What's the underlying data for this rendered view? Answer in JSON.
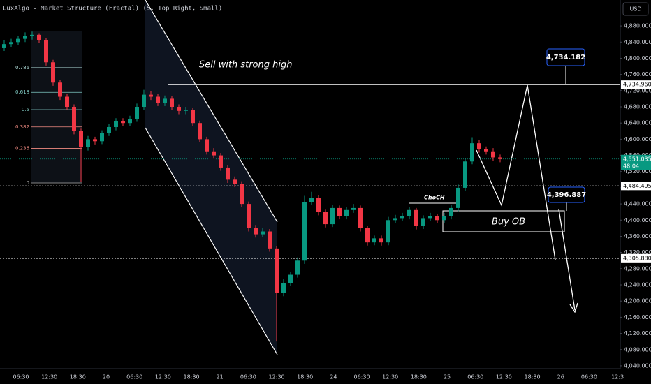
{
  "chart_data": {
    "type": "candlestick",
    "indicator": "LuxAlgo - Market Structure (Fractal) (5, Top Right, Small)",
    "currency": "USD",
    "up_color": "#089981",
    "down_color": "#f23645",
    "ylim": [
      4033,
      4944
    ],
    "yticks": [
      {
        "value": 4040,
        "label": "4,040.000"
      },
      {
        "value": 4080,
        "label": "4,080.000"
      },
      {
        "value": 4120,
        "label": "4,120.000"
      },
      {
        "value": 4160,
        "label": "4,160.000"
      },
      {
        "value": 4200,
        "label": "4,200.000"
      },
      {
        "value": 4240,
        "label": "4,240.000"
      },
      {
        "value": 4280,
        "label": "4,280.000"
      },
      {
        "value": 4320,
        "label": "4,320.000"
      },
      {
        "value": 4360,
        "label": "4,360.000"
      },
      {
        "value": 4400,
        "label": "4,400.000"
      },
      {
        "value": 4440,
        "label": "4,440.000"
      },
      {
        "value": 4480,
        "label": "4,480.000"
      },
      {
        "value": 4520,
        "label": "4,520.000"
      },
      {
        "value": 4560,
        "label": "4,560.000"
      },
      {
        "value": 4600,
        "label": "4,600.000"
      },
      {
        "value": 4640,
        "label": "4,640.000"
      },
      {
        "value": 4680,
        "label": "4,680.000"
      },
      {
        "value": 4720,
        "label": "4,720.000"
      },
      {
        "value": 4760,
        "label": "4,760.000"
      },
      {
        "value": 4800,
        "label": "4,800.000"
      },
      {
        "value": 4840,
        "label": "4,840.000"
      },
      {
        "value": 4880,
        "label": "4,880.000"
      }
    ],
    "xtick_labels": [
      "06:30",
      "12:30",
      "18:30",
      "20",
      "06:30",
      "12:30",
      "18:30",
      "21",
      "06:30",
      "12:30",
      "18:30",
      "24",
      "06:30",
      "12:30",
      "18:30",
      "25",
      "06:30",
      "12:30",
      "18:30",
      "26",
      "06:30",
      "12:3"
    ],
    "ohlc": [
      [
        4825,
        4845,
        4818,
        4835
      ],
      [
        4835,
        4848,
        4828,
        4840
      ],
      [
        4840,
        4856,
        4833,
        4848
      ],
      [
        4848,
        4864,
        4840,
        4855
      ],
      [
        4855,
        4866,
        4846,
        4858
      ],
      [
        4858,
        4862,
        4838,
        4845
      ],
      [
        4845,
        4850,
        4782,
        4790
      ],
      [
        4790,
        4796,
        4732,
        4740
      ],
      [
        4740,
        4746,
        4697,
        4705
      ],
      [
        4705,
        4712,
        4672,
        4680
      ],
      [
        4680,
        4686,
        4612,
        4620
      ],
      [
        4620,
        4626,
        4495,
        4580
      ],
      [
        4580,
        4608,
        4572,
        4600
      ],
      [
        4600,
        4606,
        4587,
        4595
      ],
      [
        4595,
        4622,
        4588,
        4615
      ],
      [
        4615,
        4638,
        4608,
        4630
      ],
      [
        4630,
        4652,
        4622,
        4645
      ],
      [
        4645,
        4652,
        4632,
        4640
      ],
      [
        4640,
        4658,
        4633,
        4650
      ],
      [
        4650,
        4688,
        4643,
        4680
      ],
      [
        4680,
        4722,
        4672,
        4710
      ],
      [
        4710,
        4718,
        4697,
        4705
      ],
      [
        4705,
        4712,
        4682,
        4690
      ],
      [
        4690,
        4708,
        4682,
        4700
      ],
      [
        4700,
        4707,
        4672,
        4680
      ],
      [
        4680,
        4686,
        4662,
        4670
      ],
      [
        4670,
        4680,
        4662,
        4672
      ],
      [
        4672,
        4678,
        4632,
        4640
      ],
      [
        4640,
        4646,
        4592,
        4600
      ],
      [
        4600,
        4606,
        4562,
        4570
      ],
      [
        4570,
        4578,
        4552,
        4560
      ],
      [
        4560,
        4566,
        4522,
        4530
      ],
      [
        4530,
        4536,
        4492,
        4500
      ],
      [
        4500,
        4508,
        4482,
        4490
      ],
      [
        4490,
        4496,
        4432,
        4440
      ],
      [
        4440,
        4446,
        4372,
        4380
      ],
      [
        4380,
        4388,
        4357,
        4365
      ],
      [
        4365,
        4380,
        4358,
        4372
      ],
      [
        4372,
        4378,
        4322,
        4330
      ],
      [
        4330,
        4336,
        4100,
        4220
      ],
      [
        4220,
        4255,
        4212,
        4245
      ],
      [
        4245,
        4272,
        4238,
        4265
      ],
      [
        4265,
        4308,
        4258,
        4300
      ],
      [
        4300,
        4460,
        4292,
        4445
      ],
      [
        4445,
        4470,
        4437,
        4455
      ],
      [
        4455,
        4462,
        4412,
        4420
      ],
      [
        4420,
        4426,
        4382,
        4390
      ],
      [
        4390,
        4438,
        4383,
        4430
      ],
      [
        4430,
        4436,
        4402,
        4410
      ],
      [
        4410,
        4432,
        4402,
        4425
      ],
      [
        4425,
        4440,
        4418,
        4430
      ],
      [
        4430,
        4436,
        4372,
        4380
      ],
      [
        4380,
        4386,
        4337,
        4345
      ],
      [
        4345,
        4362,
        4338,
        4355
      ],
      [
        4355,
        4362,
        4337,
        4345
      ],
      [
        4345,
        4408,
        4338,
        4400
      ],
      [
        4400,
        4413,
        4392,
        4405
      ],
      [
        4405,
        4418,
        4397,
        4410
      ],
      [
        4410,
        4433,
        4402,
        4425
      ],
      [
        4425,
        4430,
        4377,
        4385
      ],
      [
        4385,
        4412,
        4378,
        4405
      ],
      [
        4405,
        4418,
        4397,
        4410
      ],
      [
        4410,
        4416,
        4392,
        4400
      ],
      [
        4400,
        4418,
        4393,
        4410
      ],
      [
        4410,
        4438,
        4402,
        4430
      ],
      [
        4430,
        4488,
        4422,
        4480
      ],
      [
        4480,
        4553,
        4472,
        4545
      ],
      [
        4545,
        4605,
        4538,
        4590
      ],
      [
        4590,
        4598,
        4567,
        4575
      ],
      [
        4575,
        4582,
        4562,
        4570
      ],
      [
        4570,
        4578,
        4547,
        4555
      ],
      [
        4555,
        4562,
        4543,
        4551
      ]
    ],
    "fib": {
      "levels": [
        0.786,
        0.618,
        0.5,
        0.382,
        0.236,
        0
      ],
      "colors": [
        "#b2dfdb",
        "#80cbc4",
        "#80cbc4",
        "#f28b82",
        "#f28b82",
        "#b0b0b0"
      ]
    },
    "price_lines": [
      {
        "value": 4734.96,
        "label": "4,734.960",
        "style": "solid"
      },
      {
        "value": 4484.495,
        "label": "4,484.495",
        "style": "dotted"
      },
      {
        "value": 4305.88,
        "label": "4,305.880",
        "style": "dotted"
      }
    ],
    "last_price": {
      "value": 4551.035,
      "label": "4,551.035",
      "countdown": "48:04",
      "color": "#089981"
    },
    "callouts": [
      {
        "value": 4734.182,
        "label": "4,734.182"
      },
      {
        "value": 4396.887,
        "label": "4,396.887"
      }
    ],
    "annotations": {
      "sell": "Sell with strong high",
      "choch": "ChoCH",
      "buy_ob": "Buy OB"
    }
  }
}
